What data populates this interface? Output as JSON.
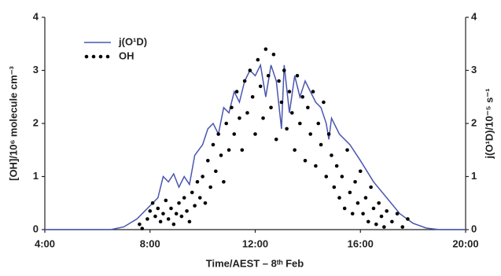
{
  "chart_data": {
    "type": "combo",
    "xlabel": "Time/AEST – 8ᵗʰ Feb",
    "ylabel": "[OH]/10⁶ molecule cm⁻³",
    "y2label": "j(O¹D)/10⁻⁵ s⁻¹",
    "xlim": [
      4,
      20
    ],
    "xticks": [
      {
        "value": 4,
        "label": "4:00"
      },
      {
        "value": 8,
        "label": "8:00"
      },
      {
        "value": 12,
        "label": "12:00"
      },
      {
        "value": 16,
        "label": "16:00"
      },
      {
        "value": 20,
        "label": "20:00"
      }
    ],
    "ylim": [
      0,
      4
    ],
    "yticks": [
      0,
      1,
      2,
      3,
      4
    ],
    "y2lim": [
      0,
      4
    ],
    "y2ticks": [
      0,
      1,
      2,
      3,
      4
    ],
    "legend": "upper left",
    "series": [
      {
        "name": "j(O¹D)",
        "type": "line",
        "axis": "y2",
        "color": "#4a55b0",
        "x": [
          4,
          6.5,
          7,
          7.5,
          8,
          8.3,
          8.5,
          8.7,
          8.9,
          9.1,
          9.3,
          9.5,
          9.7,
          10,
          10.2,
          10.4,
          10.6,
          10.8,
          11,
          11.2,
          11.4,
          11.6,
          11.8,
          12,
          12.2,
          12.4,
          12.6,
          12.8,
          13,
          13.1,
          13.3,
          13.5,
          13.7,
          13.9,
          14.1,
          14.3,
          14.5,
          14.7,
          14.8,
          14.9,
          15.2,
          15.6,
          16,
          16.5,
          17,
          17.5,
          18,
          18.5,
          19,
          20
        ],
        "values": [
          0,
          0,
          0.05,
          0.2,
          0.45,
          0.6,
          1.0,
          0.9,
          1.05,
          0.8,
          1.0,
          0.85,
          1.4,
          1.6,
          1.9,
          2.0,
          1.8,
          2.3,
          2.2,
          2.6,
          2.4,
          2.8,
          3.0,
          2.9,
          3.1,
          2.5,
          3.1,
          2.8,
          1.9,
          3.1,
          2.2,
          2.9,
          2.5,
          2.8,
          2.6,
          2.4,
          2.3,
          2.0,
          1.7,
          2.1,
          1.8,
          1.6,
          1.3,
          0.9,
          0.6,
          0.3,
          0.12,
          0.03,
          0,
          0
        ]
      },
      {
        "name": "OH",
        "type": "scatter",
        "axis": "y",
        "color": "#000000",
        "x": [
          7.6,
          7.7,
          7.9,
          8.0,
          8.1,
          8.2,
          8.3,
          8.4,
          8.5,
          8.6,
          8.7,
          8.8,
          8.9,
          9.0,
          9.1,
          9.2,
          9.3,
          9.4,
          9.5,
          9.6,
          9.7,
          9.8,
          9.9,
          10.0,
          10.1,
          10.2,
          10.3,
          10.4,
          10.5,
          10.6,
          10.7,
          10.8,
          10.9,
          11.0,
          11.1,
          11.2,
          11.3,
          11.4,
          11.5,
          11.6,
          11.7,
          11.8,
          11.9,
          12.0,
          12.1,
          12.2,
          12.3,
          12.4,
          12.5,
          12.6,
          12.7,
          12.8,
          12.9,
          13.0,
          13.1,
          13.2,
          13.3,
          13.4,
          13.5,
          13.6,
          13.7,
          13.8,
          13.9,
          14.0,
          14.1,
          14.2,
          14.3,
          14.4,
          14.5,
          14.6,
          14.7,
          14.8,
          14.9,
          15.0,
          15.1,
          15.2,
          15.3,
          15.4,
          15.5,
          15.6,
          15.7,
          15.8,
          15.9,
          16.0,
          16.1,
          16.2,
          16.3,
          16.4,
          16.5,
          16.6,
          16.7,
          16.8,
          16.9,
          17.0,
          17.2,
          17.4,
          17.6,
          17.8
        ],
        "values": [
          0.1,
          0.02,
          0.2,
          0.35,
          0.5,
          0.25,
          0.4,
          0.15,
          0.3,
          0.55,
          0.2,
          0.4,
          0.1,
          0.3,
          0.5,
          0.25,
          0.6,
          0.35,
          0.15,
          0.7,
          0.45,
          0.9,
          0.6,
          1.0,
          0.5,
          1.3,
          0.8,
          1.6,
          1.1,
          1.8,
          1.4,
          0.9,
          2.0,
          1.5,
          2.3,
          1.8,
          2.6,
          2.1,
          1.5,
          2.8,
          2.2,
          3.0,
          2.5,
          1.8,
          3.2,
          2.7,
          2.1,
          3.4,
          2.9,
          2.3,
          3.3,
          1.7,
          2.8,
          2.4,
          3.0,
          1.9,
          2.6,
          2.2,
          1.5,
          2.9,
          2.0,
          2.5,
          1.3,
          2.3,
          1.8,
          2.6,
          1.2,
          2.0,
          1.6,
          2.4,
          1.0,
          1.8,
          1.4,
          0.8,
          1.2,
          0.6,
          1.0,
          0.4,
          1.5,
          0.7,
          0.3,
          0.9,
          0.5,
          1.1,
          0.3,
          0.6,
          0.15,
          0.8,
          0.4,
          0.1,
          0.5,
          0.25,
          0.05,
          0.35,
          0.15,
          0.3,
          0.05,
          0.2
        ]
      }
    ]
  }
}
